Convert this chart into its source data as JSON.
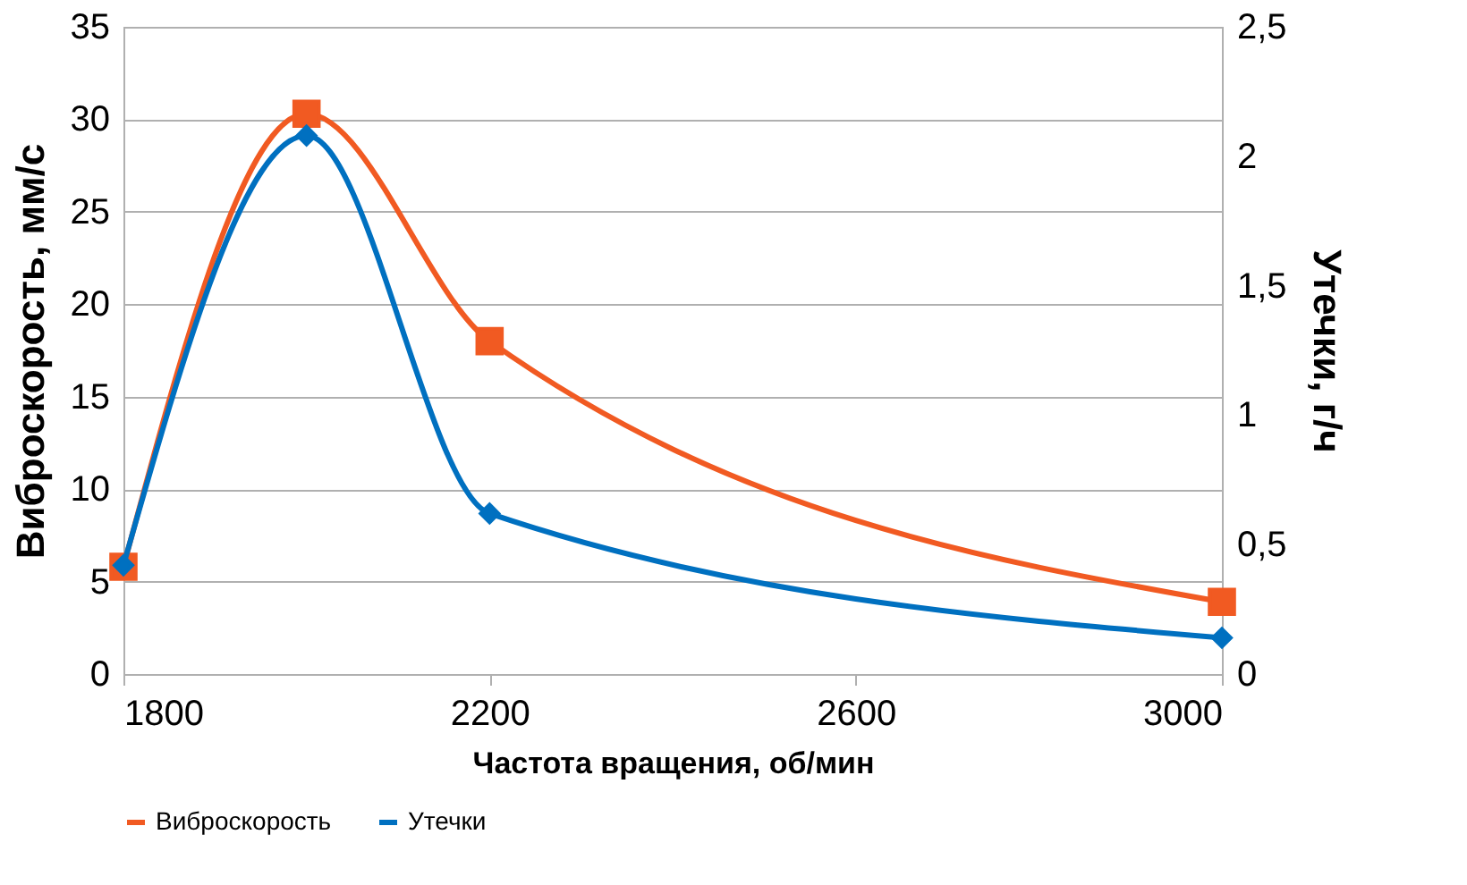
{
  "chart_data": {
    "type": "line",
    "xlabel": "Частота вращения, об/мин",
    "ylabel": "Виброскорость, мм/с",
    "y2label": "Утечки, г/ч",
    "x": [
      1800,
      2000,
      2200,
      3000
    ],
    "series": [
      {
        "name": "Виброскорость",
        "color": "#f15a22",
        "values": [
          5.8,
          30.3,
          18,
          3.9
        ],
        "marker": "square"
      },
      {
        "name": "Утечки",
        "color": "#0070c0",
        "values": [
          0.42,
          2.08,
          0.62,
          0.14
        ],
        "marker": "diamond",
        "axis": "y2"
      }
    ],
    "xlim": [
      1800,
      3000
    ],
    "xticks": [
      1800,
      2200,
      2600,
      3000
    ],
    "ylim": [
      0,
      35
    ],
    "yticks": [
      0,
      5,
      10,
      15,
      20,
      25,
      30,
      35
    ],
    "y2lim": [
      0,
      2.5
    ],
    "y2ticks": [
      0,
      {
        "value": 0.5,
        "label": "0,5"
      },
      1,
      {
        "value": 1.5,
        "label": "1,5"
      },
      2,
      {
        "value": 2.5,
        "label": "2,5"
      }
    ],
    "grid": "y",
    "legend": "bottom",
    "line_style": "solid"
  }
}
